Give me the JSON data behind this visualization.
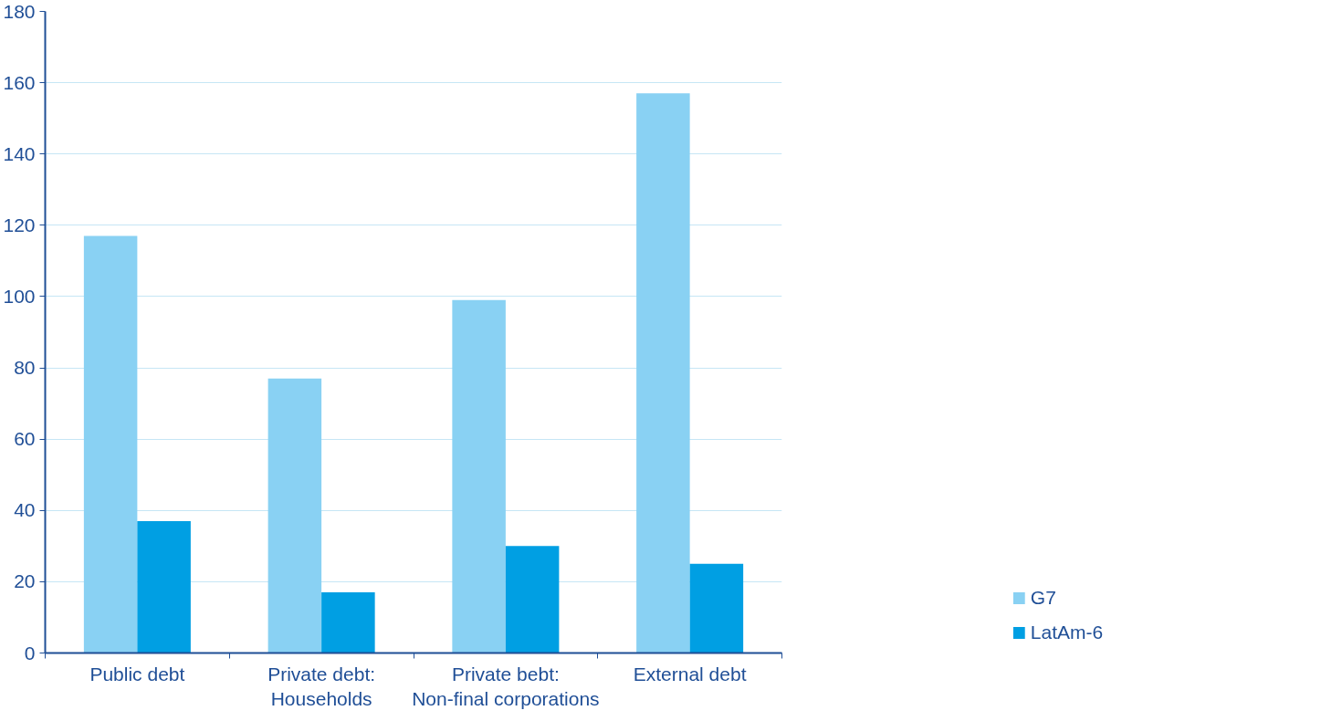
{
  "chart_data": {
    "type": "bar",
    "categories": [
      "Public debt",
      "Private debt:\nHouseholds",
      "Private bebt:\nNon-final corporations",
      "External debt"
    ],
    "series": [
      {
        "name": "G7",
        "color": "#89d1f3",
        "values": [
          117,
          77,
          99,
          157
        ]
      },
      {
        "name": "LatAm-6",
        "color": "#009fe3",
        "values": [
          37,
          17,
          30,
          25
        ]
      }
    ],
    "ylim": [
      0,
      180
    ],
    "yticks": [
      0,
      20,
      40,
      60,
      80,
      100,
      120,
      140,
      160,
      180
    ],
    "grid": "y",
    "legend": "bottom right"
  }
}
